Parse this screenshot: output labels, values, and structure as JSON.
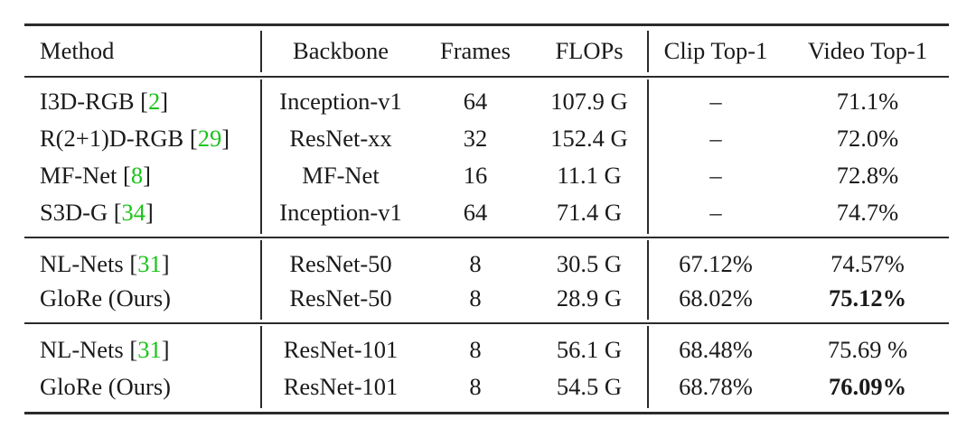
{
  "table": {
    "headers": [
      "Method",
      "Backbone",
      "Frames",
      "FLOPs",
      "Clip Top-1",
      "Video Top-1"
    ],
    "groups": [
      {
        "rows": [
          {
            "method": "I3D-RGB",
            "cite": "2",
            "backbone": "Inception-v1",
            "frames": "64",
            "flops": "107.9 G",
            "clip": "–",
            "video": "71.1%",
            "video_bold": false
          },
          {
            "method": "R(2+1)D-RGB",
            "cite": "29",
            "backbone": "ResNet-xx",
            "frames": "32",
            "flops": "152.4 G",
            "clip": "–",
            "video": "72.0%",
            "video_bold": false
          },
          {
            "method": "MF-Net",
            "cite": "8",
            "backbone": "MF-Net",
            "frames": "16",
            "flops": "11.1 G",
            "clip": "–",
            "video": "72.8%",
            "video_bold": false
          },
          {
            "method": "S3D-G",
            "cite": "34",
            "backbone": "Inception-v1",
            "frames": "64",
            "flops": "71.4 G",
            "clip": "–",
            "video": "74.7%",
            "video_bold": false
          }
        ]
      },
      {
        "rows": [
          {
            "method": "NL-Nets",
            "cite": "31",
            "backbone": "ResNet-50",
            "frames": "8",
            "flops": "30.5 G",
            "clip": "67.12%",
            "video": "74.57%",
            "video_bold": false
          },
          {
            "method": "GloRe (Ours)",
            "cite": "",
            "backbone": "ResNet-50",
            "frames": "8",
            "flops": "28.9 G",
            "clip": "68.02%",
            "video": "75.12%",
            "video_bold": true
          }
        ]
      },
      {
        "rows": [
          {
            "method": "NL-Nets",
            "cite": "31",
            "backbone": "ResNet-101",
            "frames": "8",
            "flops": "56.1 G",
            "clip": "68.48%",
            "video": "75.69 %",
            "video_bold": false
          },
          {
            "method": "GloRe (Ours)",
            "cite": "",
            "backbone": "ResNet-101",
            "frames": "8",
            "flops": "54.5 G",
            "clip": "68.78%",
            "video": "76.09%",
            "video_bold": true
          }
        ]
      }
    ]
  },
  "colors": {
    "citation": "#19c419",
    "text": "#1a1a1a",
    "rule": "#2b2b2b"
  }
}
